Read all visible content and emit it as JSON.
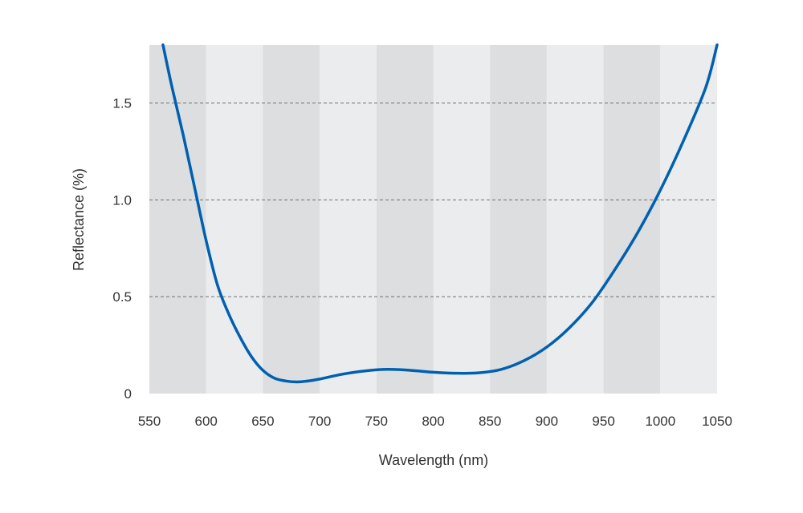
{
  "chart_data": {
    "type": "line",
    "title": "",
    "xlabel": "Wavelength (nm)",
    "ylabel": "Reflectance (%)",
    "xlim": [
      550,
      1050
    ],
    "ylim": [
      0,
      1.8
    ],
    "x_ticks": [
      550,
      600,
      650,
      700,
      750,
      800,
      850,
      900,
      950,
      1000,
      1050
    ],
    "y_ticks": [
      0,
      0.5,
      1.0,
      1.5
    ],
    "y_tick_labels": [
      "0",
      "0.5",
      "1.0",
      "1.5"
    ],
    "grid": "horizontal dashed at y ticks",
    "background_bands": "alternating 50 nm bands, darker band starting at 550",
    "series": [
      {
        "color": "#0060b0",
        "x": [
          562,
          570,
          580,
          590,
          600,
          610,
          620,
          630,
          640,
          650,
          660,
          670,
          680,
          690,
          700,
          720,
          740,
          760,
          780,
          800,
          820,
          840,
          860,
          880,
          900,
          920,
          940,
          960,
          980,
          1000,
          1020,
          1040,
          1050
        ],
        "y": [
          1.8,
          1.58,
          1.33,
          1.06,
          0.79,
          0.56,
          0.41,
          0.29,
          0.19,
          0.12,
          0.08,
          0.065,
          0.06,
          0.065,
          0.075,
          0.1,
          0.117,
          0.125,
          0.12,
          0.11,
          0.105,
          0.107,
          0.125,
          0.17,
          0.24,
          0.34,
          0.47,
          0.64,
          0.83,
          1.05,
          1.3,
          1.58,
          1.8
        ]
      }
    ],
    "colors": {
      "line": "#0060b0",
      "band_dark": "#dcdee0",
      "band_light": "#ebeced",
      "grid": "#707070",
      "text": "#333333"
    }
  }
}
